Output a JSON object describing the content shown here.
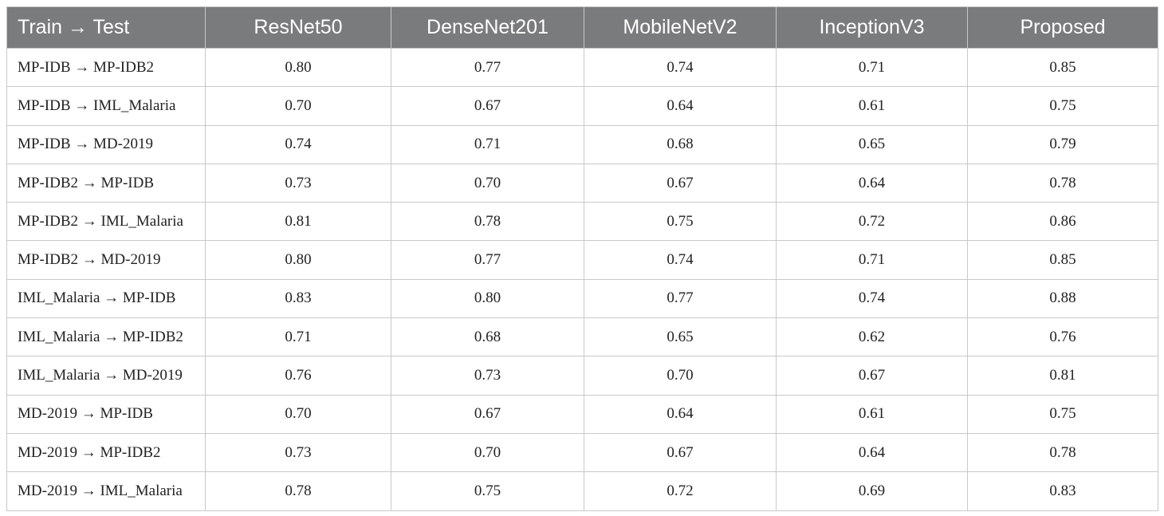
{
  "table": {
    "headers": [
      "Train → Test",
      "ResNet50",
      "DenseNet201",
      "MobileNetV2",
      "InceptionV3",
      "Proposed"
    ],
    "rows": [
      [
        "MP-IDB → MP-IDB2",
        "0.80",
        "0.77",
        "0.74",
        "0.71",
        "0.85"
      ],
      [
        "MP-IDB → IML_Malaria",
        "0.70",
        "0.67",
        "0.64",
        "0.61",
        "0.75"
      ],
      [
        "MP-IDB → MD-2019",
        "0.74",
        "0.71",
        "0.68",
        "0.65",
        "0.79"
      ],
      [
        "MP-IDB2 → MP-IDB",
        "0.73",
        "0.70",
        "0.67",
        "0.64",
        "0.78"
      ],
      [
        "MP-IDB2 → IML_Malaria",
        "0.81",
        "0.78",
        "0.75",
        "0.72",
        "0.86"
      ],
      [
        "MP-IDB2 → MD-2019",
        "0.80",
        "0.77",
        "0.74",
        "0.71",
        "0.85"
      ],
      [
        "IML_Malaria → MP-IDB",
        "0.83",
        "0.80",
        "0.77",
        "0.74",
        "0.88"
      ],
      [
        "IML_Malaria → MP-IDB2",
        "0.71",
        "0.68",
        "0.65",
        "0.62",
        "0.76"
      ],
      [
        "IML_Malaria → MD-2019",
        "0.76",
        "0.73",
        "0.70",
        "0.67",
        "0.81"
      ],
      [
        "MD-2019 → MP-IDB",
        "0.70",
        "0.67",
        "0.64",
        "0.61",
        "0.75"
      ],
      [
        "MD-2019 → MP-IDB2",
        "0.73",
        "0.70",
        "0.67",
        "0.64",
        "0.78"
      ],
      [
        "MD-2019 → IML_Malaria",
        "0.78",
        "0.75",
        "0.72",
        "0.69",
        "0.83"
      ]
    ]
  },
  "colors": {
    "header_background": "#7a7b7c",
    "header_text": "#ffffff",
    "border": "#c9c9c9"
  }
}
